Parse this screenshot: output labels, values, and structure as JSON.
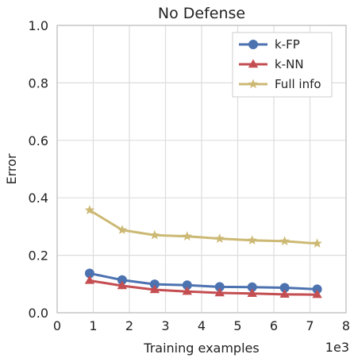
{
  "chart_data": {
    "type": "line",
    "title": "No Defense",
    "xlabel": "Training examples",
    "ylabel": "Error",
    "x_offset_text": "1e3",
    "xlim": [
      0,
      8
    ],
    "ylim": [
      0,
      1.0
    ],
    "xticks": [
      "0",
      "1",
      "2",
      "3",
      "4",
      "5",
      "6",
      "7",
      "8"
    ],
    "yticks": [
      "0.0",
      "0.2",
      "0.4",
      "0.6",
      "0.8",
      "1.0"
    ],
    "grid": true,
    "legend_position": "top-right",
    "x": [
      0.9,
      1.8,
      2.7,
      3.6,
      4.5,
      5.4,
      6.3,
      7.2
    ],
    "series": [
      {
        "name": "k-FP",
        "marker": "circle",
        "color": "#4c72b0",
        "values": [
          0.137,
          0.114,
          0.099,
          0.096,
          0.09,
          0.089,
          0.087,
          0.082
        ]
      },
      {
        "name": "k-NN",
        "marker": "triangle",
        "color": "#c44e52",
        "values": [
          0.112,
          0.094,
          0.08,
          0.074,
          0.069,
          0.067,
          0.064,
          0.063
        ]
      },
      {
        "name": "Full info",
        "marker": "star",
        "color": "#ccb974",
        "values": [
          0.357,
          0.288,
          0.27,
          0.266,
          0.258,
          0.252,
          0.249,
          0.241
        ]
      }
    ]
  }
}
